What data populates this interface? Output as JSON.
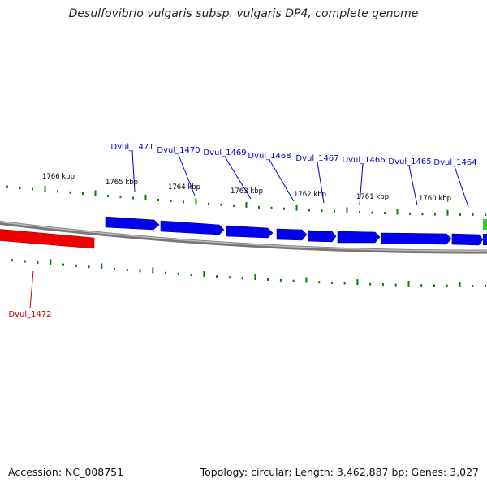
{
  "title": "Desulfovibrio vulgaris subsp. vulgaris DP4, complete genome",
  "footer": {
    "accession": "Accession: NC_008751",
    "summary": "Topology: circular; Length: 3,462,887 bp; Genes: 3,027"
  },
  "colors": {
    "forward_gene": "#0000ee",
    "reverse_gene": "#ee0000",
    "tick": "#008000",
    "backbone": "#888888",
    "label_forward": "#0000cc",
    "label_reverse": "#cc0000",
    "kbp_label": "#111111"
  },
  "kbp_labels": [
    "1766 kbp",
    "1765 kbp",
    "1764 kbp",
    "1763 kbp",
    "1762 kbp",
    "1761 kbp",
    "1760 kbp"
  ],
  "forward_genes": [
    "Dvul_1471",
    "Dvul_1470",
    "Dvul_1469",
    "Dvul_1468",
    "Dvul_1467",
    "Dvul_1466",
    "Dvul_1465",
    "Dvul_1464"
  ],
  "reverse_genes": [
    "Dvul_1472"
  ]
}
